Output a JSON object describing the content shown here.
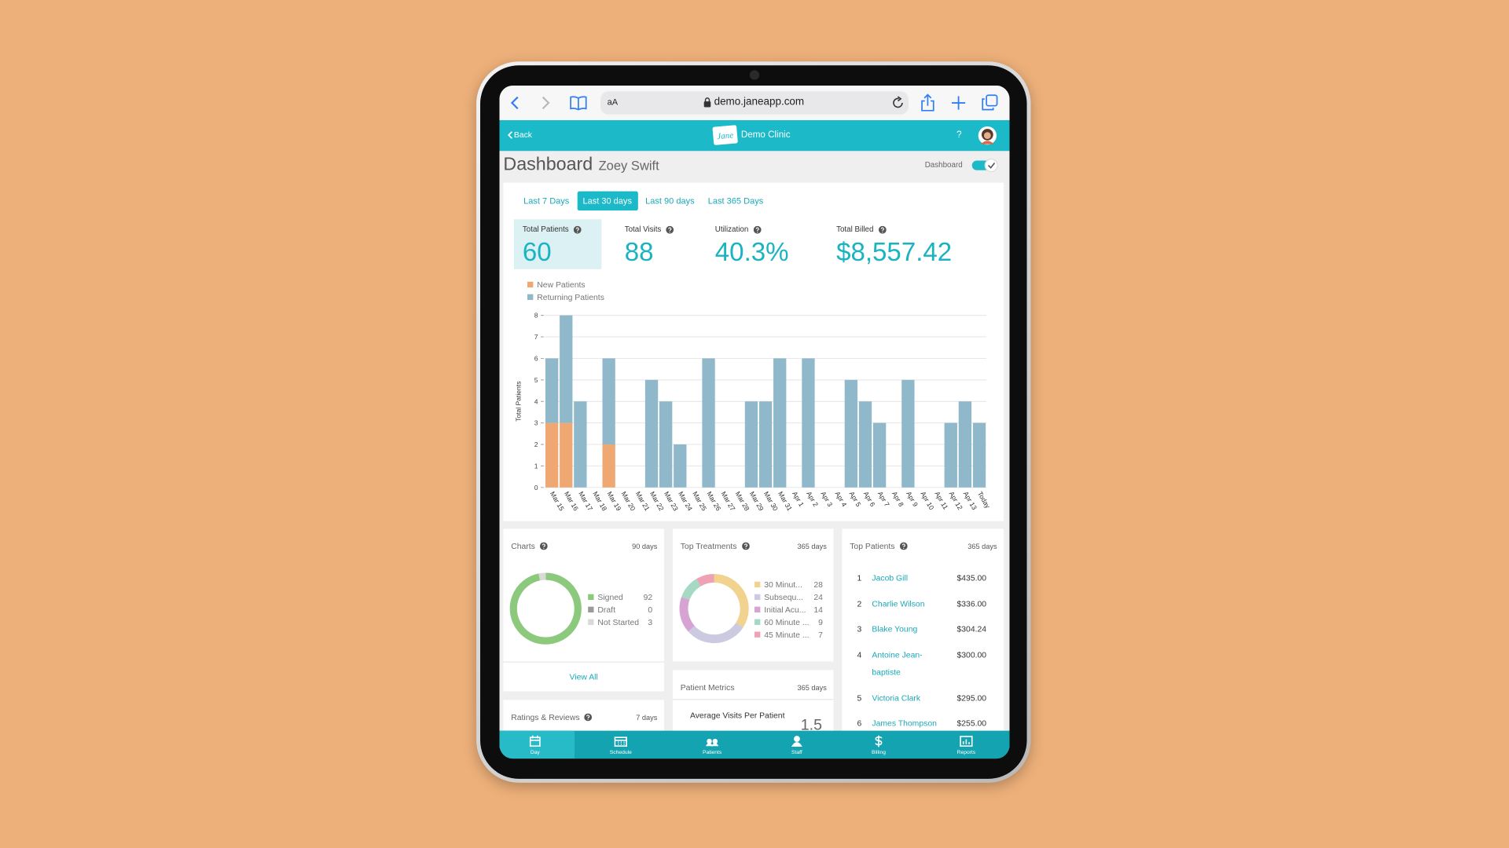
{
  "browser": {
    "text_size": "aA",
    "url": "demo.janeapp.com"
  },
  "header": {
    "back": "Back",
    "logo": "Jane",
    "clinic": "Demo Clinic",
    "help": "?"
  },
  "page": {
    "title": "Dashboard",
    "user": "Zoey Swift",
    "toggle_label": "Dashboard",
    "toggle_on": true
  },
  "tabs": [
    {
      "label": "Last 7 Days",
      "active": false
    },
    {
      "label": "Last 30 days",
      "active": true
    },
    {
      "label": "Last 90 days",
      "active": false
    },
    {
      "label": "Last 365 Days",
      "active": false
    }
  ],
  "stats": [
    {
      "label": "Total Patients",
      "value": "60",
      "selected": true
    },
    {
      "label": "Total Visits",
      "value": "88",
      "selected": false
    },
    {
      "label": "Utilization",
      "value": "40.3%",
      "selected": false
    },
    {
      "label": "Total Billed",
      "value": "$8,557.42",
      "selected": false
    }
  ],
  "chart_data": {
    "type": "bar",
    "stacked": true,
    "y_label": "Total Patients",
    "categories": [
      "Mar 15",
      "Mar 16",
      "Mar 17",
      "Mar 18",
      "Mar 19",
      "Mar 20",
      "Mar 21",
      "Mar 22",
      "Mar 23",
      "Mar 24",
      "Mar 25",
      "Mar 26",
      "Mar 27",
      "Mar 28",
      "Mar 29",
      "Mar 30",
      "Mar 31",
      "Apr 1",
      "Apr 2",
      "Apr 3",
      "Apr 4",
      "Apr 5",
      "Apr 6",
      "Apr 7",
      "Apr 8",
      "Apr 9",
      "Apr 10",
      "Apr 11",
      "Apr 12",
      "Apr 13",
      "Today"
    ],
    "series": [
      {
        "name": "New Patients",
        "color": "#efa872",
        "values": [
          3,
          3,
          0,
          0,
          2,
          0,
          0,
          0,
          0,
          0,
          0,
          0,
          0,
          0,
          0,
          0,
          0,
          0,
          0,
          0,
          0,
          0,
          0,
          0,
          0,
          0,
          0,
          0,
          0,
          0,
          0
        ]
      },
      {
        "name": "Returning Patients",
        "color": "#8fb8cb",
        "values": [
          3,
          5,
          4,
          0,
          4,
          0,
          0,
          5,
          4,
          2,
          0,
          6,
          0,
          0,
          4,
          4,
          6,
          0,
          6,
          0,
          0,
          5,
          4,
          3,
          0,
          5,
          0,
          0,
          3,
          4,
          3
        ]
      }
    ],
    "ylim": [
      0,
      8
    ],
    "yticks": [
      0,
      1,
      2,
      3,
      4,
      5,
      6,
      7,
      8
    ],
    "grid": true
  },
  "charts": {
    "title": "Charts",
    "period": "90 days",
    "items": [
      {
        "label": "Signed",
        "value": 92,
        "color": "#8cc97c"
      },
      {
        "label": "Draft",
        "value": 0,
        "color": "#9a9a9a"
      },
      {
        "label": "Not Started",
        "value": 3,
        "color": "#d9d9d9"
      }
    ],
    "link": "View All"
  },
  "top_treatments": {
    "title": "Top Treatments",
    "period": "365 days",
    "items": [
      {
        "label": "30 Minut...",
        "value": 28,
        "color": "#f2d28f"
      },
      {
        "label": "Subsequ...",
        "value": 24,
        "color": "#cbcae0"
      },
      {
        "label": "Initial Acu...",
        "value": 14,
        "color": "#d6a3d2"
      },
      {
        "label": "60 Minute ...",
        "value": 9,
        "color": "#a6d9c3"
      },
      {
        "label": "45 Minute ...",
        "value": 7,
        "color": "#efa1b5"
      }
    ]
  },
  "top_patients": {
    "title": "Top Patients",
    "period": "365 days",
    "rows": [
      {
        "rank": 1,
        "name": "Jacob Gill",
        "amount": "$435.00"
      },
      {
        "rank": 2,
        "name": "Charlie Wilson",
        "amount": "$336.00"
      },
      {
        "rank": 3,
        "name": "Blake Young",
        "amount": "$304.24"
      },
      {
        "rank": 4,
        "name": "Antoine Jean-baptiste",
        "amount": "$300.00"
      },
      {
        "rank": 5,
        "name": "Victoria Clark",
        "amount": "$295.00"
      },
      {
        "rank": 6,
        "name": "James Thompson",
        "amount": "$255.00"
      }
    ]
  },
  "patient_metrics": {
    "title": "Patient Metrics",
    "period": "365 days",
    "metric": "Average Visits Per Patient",
    "value": "1.5"
  },
  "ratings": {
    "title": "Ratings & Reviews",
    "period": "7 days"
  },
  "nav": [
    {
      "label": "Day",
      "active": true
    },
    {
      "label": "Schedule",
      "active": false
    },
    {
      "label": "Patients",
      "active": false
    },
    {
      "label": "Staff",
      "active": false
    },
    {
      "label": "Billing",
      "active": false
    },
    {
      "label": "Reports",
      "active": false
    }
  ]
}
